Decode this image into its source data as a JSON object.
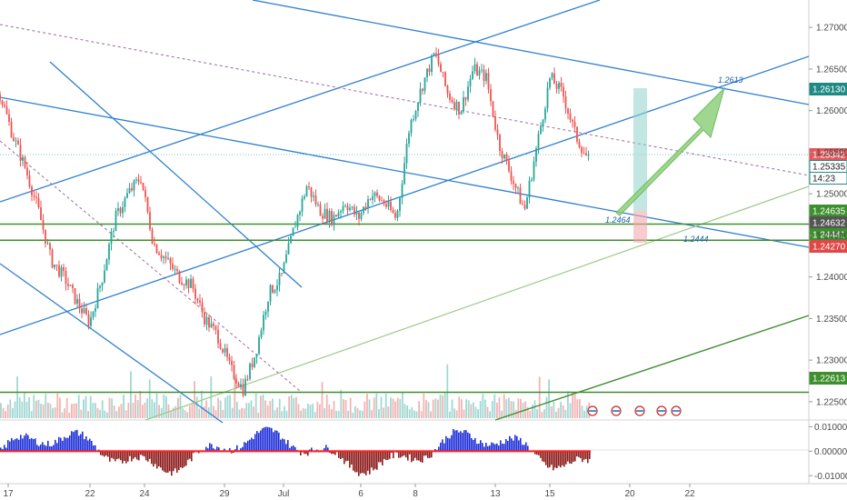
{
  "chart_data": {
    "type": "line",
    "title": "",
    "xlabel": "",
    "ylabel": "",
    "ylim": [
      1.2228,
      1.2733
    ],
    "grid": false,
    "x_ticks": [
      "17",
      "22",
      "24",
      "29",
      "Jul",
      "6",
      "8",
      "13",
      "15",
      "20",
      "22"
    ],
    "y_ticks": [
      "1.27000",
      "1.26500",
      "1.26000",
      "1.25500",
      "1.25000",
      "1.24500",
      "1.24000",
      "1.23500",
      "1.23000",
      "1.22500"
    ],
    "series": [
      {
        "values": [
          1.262,
          1.257,
          1.253,
          1.248,
          1.242,
          1.24,
          1.237,
          1.2345,
          1.24,
          1.247,
          1.25,
          1.252,
          1.244,
          1.242,
          1.24,
          1.239,
          1.235,
          1.233,
          1.229,
          1.2265,
          1.231,
          1.238,
          1.24,
          1.246,
          1.251,
          1.248,
          1.247,
          1.249,
          1.247,
          1.25,
          1.249,
          1.247,
          1.258,
          1.263,
          1.267,
          1.262,
          1.26,
          1.265,
          1.264,
          1.256,
          1.252,
          1.248,
          1.256,
          1.264,
          1.262,
          1.257,
          1.254
        ]
      }
    ],
    "price_levels": [
      {
        "label": "1.26130",
        "value": 1.2613,
        "color": "#1e8a84"
      },
      {
        "label": "1.25342",
        "value": 1.25342,
        "color": "#e0585c"
      },
      {
        "label": "1.25335",
        "value": 1.25335,
        "color": "#1e8a84"
      },
      {
        "label": "14:23",
        "value": 1.2525,
        "color": "#1e8a84"
      },
      {
        "label": "1.24635",
        "value": 1.24635,
        "color": "#3e8f2e"
      },
      {
        "label": "1.24632",
        "value": 1.24632,
        "color": "#555555"
      },
      {
        "label": "1.24441",
        "value": 1.24441,
        "color": "#3e8f2e"
      },
      {
        "label": "1.24270",
        "value": 1.2427,
        "color": "#e04848"
      },
      {
        "label": "1.22613",
        "value": 1.22613,
        "color": "#3e8f2e"
      }
    ],
    "annotations": [
      {
        "text": "1.2613",
        "x": 23.4,
        "y": 1.2613
      },
      {
        "text": "1.2464",
        "x": 17.7,
        "y": 1.2458
      },
      {
        "text": "1.2444",
        "x": 21.4,
        "y": 1.2438
      }
    ],
    "indicator": {
      "ylim": [
        -0.0125,
        0.012
      ],
      "y_ticks": [
        "0.01000",
        "0.00000",
        "-0.01000"
      ]
    }
  }
}
